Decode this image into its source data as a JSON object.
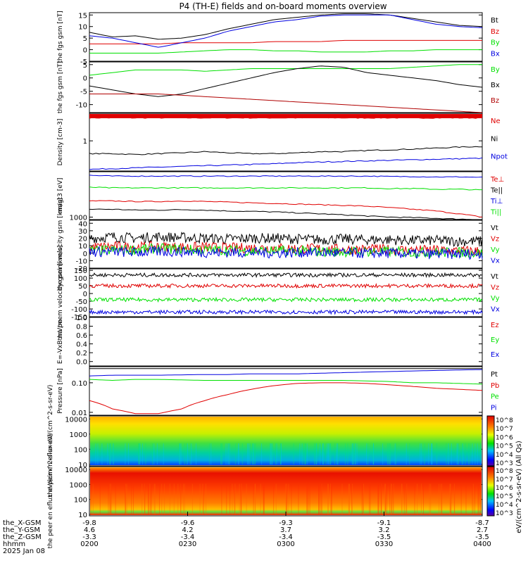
{
  "title": "P4 (TH-E) fields and on-board moments overview",
  "colors": {
    "black": "#000000",
    "red": "#e00000",
    "green": "#00e000",
    "blue": "#0000e0",
    "darkred": "#b00000"
  },
  "chart_data": [
    {
      "type": "line",
      "ylabel": "the fgs gsm [nT]",
      "ylim": [
        -5,
        16
      ],
      "yticks": [
        "15",
        "10",
        "5",
        "0",
        "-5"
      ],
      "series": [
        {
          "name": "Bt",
          "color": "#000000",
          "values": [
            7.5,
            5.5,
            6,
            4.5,
            5,
            6.5,
            9,
            11,
            13,
            14,
            15,
            15.5,
            15.5,
            15,
            13.5,
            12,
            10.5,
            10
          ]
        },
        {
          "name": "Bz",
          "color": "#e00000",
          "values": [
            2.5,
            2.5,
            2.5,
            2.5,
            3,
            3,
            3,
            3,
            3.5,
            3.5,
            3.5,
            4,
            4,
            4,
            4,
            4,
            4,
            4
          ]
        },
        {
          "name": "By",
          "color": "#00e000",
          "values": [
            -1.5,
            -1.5,
            -1.5,
            -1.5,
            -1,
            -0.5,
            0,
            0,
            -0.5,
            -0.5,
            -1,
            -1,
            -1,
            -0.5,
            -0.5,
            0,
            0,
            0
          ]
        },
        {
          "name": "Bx",
          "color": "#0000e0",
          "values": [
            6,
            5,
            3,
            1,
            3,
            5,
            8,
            10,
            12,
            13,
            14.5,
            15,
            15,
            15,
            13,
            11,
            10,
            9.5
          ]
        }
      ]
    },
    {
      "type": "line",
      "ylabel": "the fgs gsm [nT]",
      "ylim": [
        -13,
        6
      ],
      "yticks": [
        "5",
        "0",
        "-5",
        "-10"
      ],
      "series": [
        {
          "name": "By",
          "color": "#00e000",
          "values": [
            1,
            2,
            3,
            3,
            3,
            2.5,
            3,
            3.5,
            3.5,
            3.5,
            3.5,
            3.5,
            3.5,
            3.5,
            4,
            4.5,
            5,
            5
          ]
        },
        {
          "name": "Bx",
          "color": "#000000",
          "values": [
            -3,
            -4.5,
            -6,
            -7,
            -6,
            -4,
            -2,
            0,
            2,
            3.5,
            4.5,
            4,
            2,
            1,
            0,
            -1,
            -2.5,
            -3.5
          ]
        },
        {
          "name": "Bz",
          "color": "#b00000",
          "values": [
            -6,
            -6,
            -6,
            -6,
            -6.5,
            -7,
            -7.5,
            -8,
            -8.5,
            -9,
            -9.5,
            -10,
            -10.5,
            -11,
            -11.5,
            -12,
            -12.5,
            -13
          ]
        }
      ]
    },
    {
      "type": "line",
      "ylabel": "Density [cm-3]",
      "yscale": "log",
      "ylim": [
        0.3,
        3
      ],
      "yticks": [
        "1"
      ],
      "series": [
        {
          "name": "Ne",
          "color": "#e00000",
          "values": [
            2.5,
            2.5,
            2.5,
            2.5,
            2.5,
            2.5,
            2.5,
            2.5,
            2.5,
            2.5,
            2.5,
            2.5,
            2.5,
            2.5,
            2.5,
            2.5,
            2.5,
            2.5
          ]
        },
        {
          "name": "Ni",
          "color": "#000000",
          "values": [
            0.6,
            0.6,
            0.58,
            0.6,
            0.62,
            0.65,
            0.62,
            0.6,
            0.6,
            0.62,
            0.65,
            0.65,
            0.68,
            0.7,
            0.72,
            0.75,
            0.78,
            0.8
          ]
        },
        {
          "name": "Npot",
          "color": "#0000e0",
          "values": [
            0.32,
            0.33,
            0.34,
            0.35,
            0.36,
            0.37,
            0.38,
            0.39,
            0.4,
            0.42,
            0.43,
            0.44,
            0.45,
            0.46,
            0.47,
            0.48,
            0.49,
            0.5
          ]
        }
      ]
    },
    {
      "type": "line",
      "ylabel": "magt3 [eV]",
      "yscale": "log",
      "ylim": [
        900,
        7000
      ],
      "yticks": [
        "1000"
      ],
      "series": [
        {
          "name": "Te⊥",
          "color": "#e00000",
          "values": [
            2000,
            2000,
            1950,
            1950,
            2000,
            1950,
            1900,
            1850,
            1800,
            1750,
            1700,
            1650,
            1600,
            1500,
            1400,
            1300,
            1150,
            1000
          ]
        },
        {
          "name": "Te||",
          "color": "#000000",
          "values": [
            1400,
            1400,
            1350,
            1350,
            1380,
            1350,
            1300,
            1280,
            1250,
            1200,
            1150,
            1100,
            1050,
            1000,
            980,
            950,
            920,
            900
          ]
        },
        {
          "name": "Ti⊥",
          "color": "#0000e0",
          "values": [
            6000,
            5800,
            5800,
            5800,
            5800,
            5800,
            5800,
            5800,
            5800,
            5800,
            5800,
            5800,
            5800,
            5700,
            5700,
            5600,
            5600,
            5500
          ]
        },
        {
          "name": "Ti||",
          "color": "#00e000",
          "values": [
            3600,
            3500,
            3500,
            3500,
            3500,
            3500,
            3500,
            3500,
            3500,
            3500,
            3500,
            3500,
            3500,
            3400,
            3400,
            3300,
            3300,
            3200
          ]
        }
      ]
    },
    {
      "type": "line",
      "ylabel": "the peim velocity gsm [km/s]",
      "ylim": [
        -20,
        44
      ],
      "yticks": [
        "40",
        "30",
        "20",
        "10",
        "0",
        "-10",
        "-20"
      ],
      "series": [
        {
          "name": "Vt",
          "color": "#000000",
          "values": [
            20,
            22,
            20,
            22,
            21,
            20,
            19,
            20,
            20,
            19,
            18,
            19,
            18,
            18,
            17,
            17,
            16,
            16
          ]
        },
        {
          "name": "Vz",
          "color": "#e00000",
          "values": [
            8,
            9,
            8,
            9,
            8,
            8,
            7,
            7,
            7,
            6,
            6,
            5,
            5,
            5,
            4,
            4,
            3,
            3
          ]
        },
        {
          "name": "Vy",
          "color": "#00e000",
          "values": [
            3,
            4,
            5,
            6,
            5,
            4,
            4,
            3,
            3,
            3,
            2,
            2,
            2,
            2,
            1,
            1,
            1,
            0
          ]
        },
        {
          "name": "Vx",
          "color": "#0000e0",
          "values": [
            2,
            2,
            1,
            2,
            2,
            1,
            1,
            1,
            0,
            1,
            1,
            0,
            0,
            0,
            -1,
            -1,
            -1,
            -1
          ]
        }
      ]
    },
    {
      "type": "line",
      "ylabel": "the peem velocity gsm [km/s]",
      "ylim": [
        -150,
        160
      ],
      "yticks": [
        "150",
        "100",
        "50",
        "0",
        "-50",
        "-100",
        "-150"
      ],
      "series": [
        {
          "name": "Vt",
          "color": "#000000",
          "values": [
            120,
            120,
            120,
            120,
            120,
            120,
            120,
            120,
            120,
            120,
            120,
            120,
            120,
            120,
            120,
            120,
            120,
            120
          ]
        },
        {
          "name": "Vz",
          "color": "#e00000",
          "values": [
            50,
            50,
            50,
            50,
            50,
            50,
            50,
            50,
            50,
            50,
            50,
            50,
            50,
            50,
            50,
            50,
            50,
            50
          ]
        },
        {
          "name": "Vy",
          "color": "#00e000",
          "values": [
            -40,
            -40,
            -40,
            -40,
            -40,
            -40,
            -40,
            -40,
            -40,
            -40,
            -40,
            -40,
            -40,
            -40,
            -40,
            -40,
            -40,
            -40
          ]
        },
        {
          "name": "Vx",
          "color": "#0000e0",
          "values": [
            -120,
            -120,
            -120,
            -120,
            -120,
            -120,
            -120,
            -120,
            -120,
            -120,
            -120,
            -120,
            -120,
            -120,
            -120,
            -120,
            -120,
            -120
          ]
        }
      ]
    },
    {
      "type": "line",
      "ylabel": "E=-VxB mV/m",
      "ylim": [
        -0.1,
        1.0
      ],
      "yticks": [
        "1.0",
        "0.8",
        "0.6",
        "0.4",
        "0.2",
        "0.0"
      ],
      "series": [
        {
          "name": "Ez",
          "color": "#e00000",
          "values": []
        },
        {
          "name": "Ey",
          "color": "#00e000",
          "values": []
        },
        {
          "name": "Ex",
          "color": "#0000e0",
          "values": []
        }
      ]
    },
    {
      "type": "line",
      "ylabel": "Pressure [nPa]",
      "yscale": "log",
      "ylim": [
        0.008,
        0.35
      ],
      "yticks": [
        "0.10",
        "0.01"
      ],
      "series": [
        {
          "name": "Pt",
          "color": "#000000",
          "values": [
            0.3,
            0.3,
            0.3,
            0.3,
            0.3,
            0.3,
            0.3,
            0.3,
            0.3,
            0.3,
            0.3,
            0.3,
            0.3,
            0.3,
            0.3,
            0.3,
            0.3,
            0.3
          ]
        },
        {
          "name": "Pb",
          "color": "#e00000",
          "values": [
            0.025,
            0.013,
            0.009,
            0.009,
            0.013,
            0.025,
            0.04,
            0.06,
            0.08,
            0.095,
            0.1,
            0.1,
            0.095,
            0.085,
            0.075,
            0.065,
            0.06,
            0.055
          ]
        },
        {
          "name": "Pe",
          "color": "#00e000",
          "values": [
            0.13,
            0.12,
            0.13,
            0.13,
            0.125,
            0.12,
            0.12,
            0.12,
            0.12,
            0.12,
            0.12,
            0.12,
            0.115,
            0.11,
            0.1,
            0.1,
            0.095,
            0.09
          ]
        },
        {
          "name": "Pi",
          "color": "#0000e0",
          "values": [
            0.17,
            0.18,
            0.18,
            0.18,
            0.185,
            0.19,
            0.19,
            0.2,
            0.2,
            0.2,
            0.21,
            0.22,
            0.23,
            0.24,
            0.25,
            0.26,
            0.27,
            0.28
          ]
        }
      ]
    },
    {
      "type": "heatmap",
      "ylabel": "the peir en eflux eV/(cm^2-s-sr-eV)",
      "yscale": "log",
      "yticks": [
        "10000",
        "1000",
        "100",
        "10"
      ],
      "colorbar": {
        "label": "eV/(cm^2-s-sr-eV) (All Qs)",
        "ticks": [
          "10^8",
          "10^7",
          "10^6",
          "10^5",
          "10^4",
          "10^3"
        ]
      }
    },
    {
      "type": "heatmap",
      "ylabel": "the peer en eflux eV/(cm^2-s-sr-eV)",
      "yscale": "log",
      "yticks": [
        "10000",
        "1000",
        "100",
        "10"
      ],
      "colorbar": {
        "label": "eV/(cm^2-s-sr-eV) (All Qs)",
        "ticks": [
          "10^8",
          "10^7",
          "10^6",
          "10^5",
          "10^4",
          "10^3"
        ]
      }
    }
  ],
  "xaxis": {
    "rows": [
      {
        "label": "the_X-GSM",
        "values": [
          "-9.8",
          "-9.6",
          "-9.3",
          "-9.1",
          "-8.7"
        ]
      },
      {
        "label": "the_Y-GSM",
        "values": [
          "4.6",
          "4.2",
          "3.7",
          "3.2",
          "2.7"
        ]
      },
      {
        "label": "the_Z-GSM",
        "values": [
          "-3.3",
          "-3.4",
          "-3.4",
          "-3.5",
          "-3.5"
        ]
      },
      {
        "label": "hhmm",
        "values": [
          "0200",
          "0230",
          "0300",
          "0330",
          "0400"
        ]
      }
    ],
    "date": "2025 Jan 08"
  }
}
